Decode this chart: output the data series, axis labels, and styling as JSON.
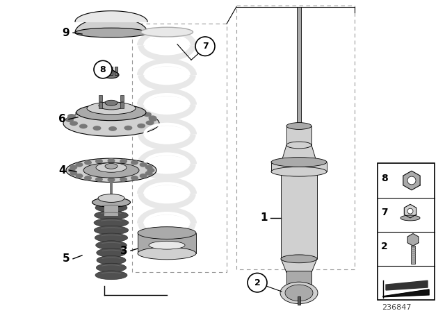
{
  "bg_color": "#ffffff",
  "part_number": "236847",
  "lc": "#000000",
  "gray_light": "#d0d0d0",
  "gray_mid": "#aaaaaa",
  "gray_dark": "#787878",
  "gray_darker": "#555555",
  "gray_very_light": "#e8e8e8",
  "bump_dark": "#505050",
  "bump_light": "#707070",
  "dashed_color": "#999999"
}
